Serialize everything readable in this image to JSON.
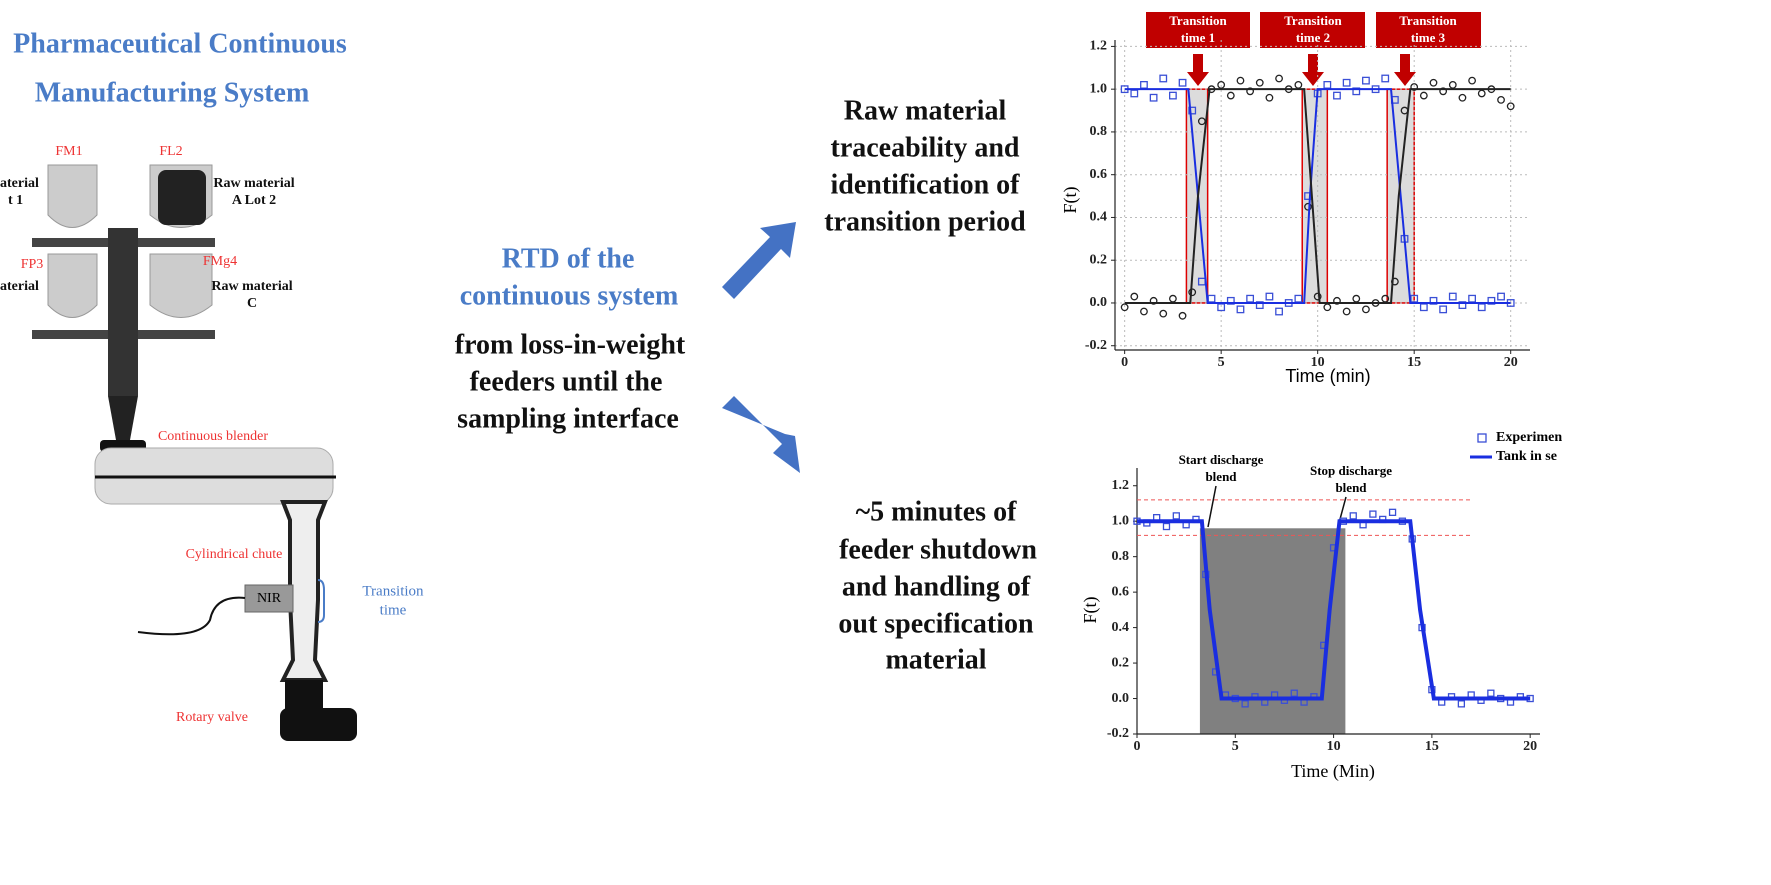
{
  "header": {
    "title": [
      "Pharmaceutical Continuous",
      "Manufacturing System"
    ]
  },
  "system": {
    "feeders": [
      "FM1",
      "FL2",
      "FP3",
      "FMg4"
    ],
    "materials": [
      [
        "aterial",
        "t 1"
      ],
      [
        "Raw material",
        "A Lot 2"
      ],
      [
        "aterial"
      ],
      [
        "Raw material",
        "C"
      ]
    ],
    "blender": "Continuous blender",
    "chute": "Cylindrical chute",
    "sensor": "NIR",
    "transition": [
      "Transition",
      "time"
    ],
    "valve": "Rotary valve"
  },
  "center": {
    "rtd_title": [
      "RTD of the",
      "continuous system"
    ],
    "rtd_scope": [
      "from  loss-in-weight",
      "feeders until the",
      "sampling interface"
    ]
  },
  "outcomes": [
    [
      "Raw material",
      "traceability and",
      "identification of",
      "transition period"
    ],
    [
      "~5 minutes  of",
      "feeder shutdown",
      "and handling of",
      "out specification",
      "material"
    ]
  ],
  "chart_data": [
    {
      "type": "scatter",
      "ylabel": "F(t)",
      "xlabel": "Time (min)",
      "grid": true,
      "xlim": [
        -0.5,
        21
      ],
      "ylim": [
        -0.22,
        1.23
      ],
      "xticks": [
        0,
        5,
        10,
        15,
        20
      ],
      "yticks": [
        -0.2,
        {
          "value": 0,
          "label": "0.0"
        },
        0.2,
        0.4,
        0.6,
        0.8,
        {
          "value": 1,
          "label": "1.0"
        },
        1.2
      ],
      "annotations": [
        [
          "Transition",
          "time 1"
        ],
        [
          "Transition",
          "time 2"
        ],
        [
          "Transition",
          "time 3"
        ]
      ],
      "highlight_ranges": [
        [
          3.2,
          4.3
        ],
        [
          9.2,
          10.5
        ],
        [
          13.6,
          15.0
        ]
      ],
      "highlight_ylim": [
        0,
        1
      ],
      "x": [
        0,
        0.5,
        1,
        1.5,
        2,
        2.5,
        3,
        3.5,
        4,
        4.5,
        5,
        5.5,
        6,
        6.5,
        7,
        7.5,
        8,
        8.5,
        9,
        9.5,
        10,
        10.5,
        11,
        11.5,
        12,
        12.5,
        13,
        13.5,
        14,
        14.5,
        15,
        15.5,
        16,
        16.5,
        17,
        17.5,
        18,
        18.5,
        19,
        19.5,
        20
      ],
      "series": [
        {
          "mode": "square",
          "color": "#3a4fd6",
          "values": [
            1.0,
            0.98,
            1.02,
            0.96,
            1.05,
            0.97,
            1.03,
            0.9,
            0.1,
            0.02,
            -0.02,
            0.01,
            -0.03,
            0.02,
            -0.01,
            0.03,
            -0.04,
            0.0,
            0.02,
            0.5,
            0.98,
            1.02,
            0.97,
            1.03,
            0.99,
            1.04,
            1.0,
            1.05,
            0.95,
            0.3,
            0.02,
            -0.02,
            0.01,
            -0.03,
            0.03,
            -0.01,
            0.02,
            -0.02,
            0.01,
            0.03,
            0.0
          ]
        },
        {
          "mode": "circle",
          "color": "#222222",
          "values": [
            -0.02,
            0.03,
            -0.04,
            0.01,
            -0.05,
            0.02,
            -0.06,
            0.05,
            0.85,
            1.0,
            1.02,
            0.97,
            1.04,
            0.99,
            1.03,
            0.96,
            1.05,
            1.0,
            1.02,
            0.45,
            0.03,
            -0.02,
            0.01,
            -0.04,
            0.02,
            -0.03,
            0.0,
            0.02,
            0.1,
            0.9,
            1.01,
            0.97,
            1.03,
            0.99,
            1.02,
            0.96,
            1.04,
            0.98,
            1.0,
            0.95,
            0.92
          ]
        },
        {
          "mode": "line",
          "color": "#1a2ee0",
          "x": [
            0,
            3.3,
            3.8,
            4.3,
            9.3,
            9.6,
            10,
            13.8,
            14.3,
            14.8,
            20
          ],
          "values": [
            1,
            1,
            0.5,
            0,
            0,
            0.5,
            1,
            1,
            0.5,
            0,
            0
          ]
        },
        {
          "mode": "line",
          "color": "#222222",
          "x": [
            0,
            3.4,
            3.8,
            4.4,
            9.3,
            9.7,
            10.1,
            13.8,
            14.2,
            14.8,
            20
          ],
          "values": [
            0,
            0,
            0.5,
            1,
            1,
            0.5,
            0,
            0,
            0.5,
            1,
            1
          ]
        }
      ]
    },
    {
      "type": "scatter",
      "ylabel": "F(t)",
      "xlabel": "Time (Min)",
      "grid": false,
      "xlim": [
        0,
        20.5
      ],
      "ylim": [
        -0.2,
        1.3
      ],
      "xticks": [
        0,
        5,
        10,
        15,
        20
      ],
      "yticks": [
        -0.2,
        {
          "value": 0,
          "label": "0.0"
        },
        0.2,
        0.4,
        0.6,
        0.8,
        {
          "value": 1,
          "label": "1.0"
        },
        1.2
      ],
      "annotations": [
        [
          "Start discharge",
          "blend"
        ],
        [
          "Stop discharge",
          "blend"
        ]
      ],
      "highlight_ranges": [
        [
          3.2,
          10.6
        ]
      ],
      "highlight_ylim": [
        -0.2,
        0.96
      ],
      "hlines": [
        1.12,
        0.92
      ],
      "x": [
        0,
        0.5,
        1,
        1.5,
        2,
        2.5,
        3,
        3.5,
        4,
        4.5,
        5,
        5.5,
        6,
        6.5,
        7,
        7.5,
        8,
        8.5,
        9,
        9.5,
        10,
        10.5,
        11,
        11.5,
        12,
        12.5,
        13,
        13.5,
        14,
        14.5,
        15,
        15.5,
        16,
        16.5,
        17,
        17.5,
        18,
        18.5,
        19,
        19.5,
        20
      ],
      "series": [
        {
          "name": "Experimen",
          "mode": "square",
          "color": "#3a4fd6",
          "values": [
            1.0,
            0.99,
            1.02,
            0.97,
            1.03,
            0.98,
            1.01,
            0.7,
            0.15,
            0.02,
            0.0,
            -0.03,
            0.01,
            -0.02,
            0.02,
            -0.01,
            0.03,
            -0.02,
            0.01,
            0.3,
            0.85,
            1.0,
            1.03,
            0.98,
            1.04,
            1.01,
            1.05,
            1.0,
            0.9,
            0.4,
            0.05,
            -0.02,
            0.01,
            -0.03,
            0.02,
            -0.01,
            0.03,
            0.0,
            -0.02,
            0.01,
            0.0
          ]
        },
        {
          "name": "Tank in se",
          "mode": "line",
          "color": "#1a2ee0",
          "x": [
            0,
            3.3,
            3.7,
            4.3,
            9.4,
            9.8,
            10.3,
            13.9,
            14.4,
            15.1,
            20
          ],
          "values": [
            1,
            1,
            0.5,
            0,
            0,
            0.5,
            1,
            1,
            0.5,
            0,
            0
          ]
        }
      ]
    }
  ]
}
